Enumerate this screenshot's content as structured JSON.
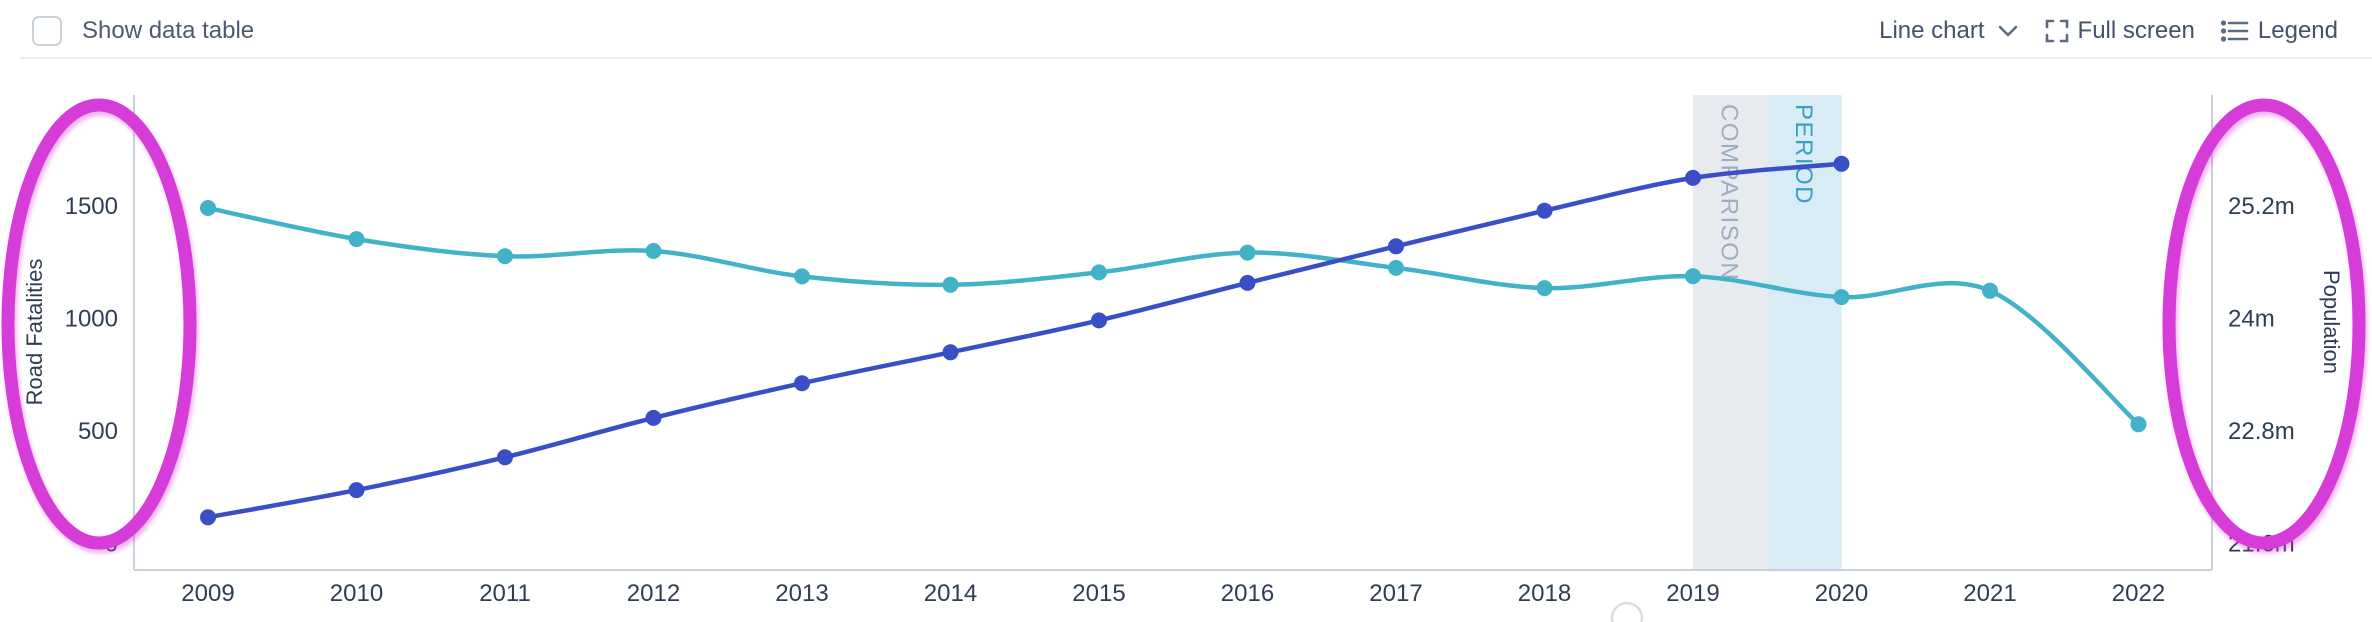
{
  "header": {
    "show_data_table_label": "Show data table",
    "controls": {
      "chart_type_label": "Line chart",
      "full_screen_label": "Full screen",
      "legend_label": "Legend"
    }
  },
  "chart_data": {
    "type": "line",
    "x": [
      2009,
      2010,
      2011,
      2012,
      2013,
      2014,
      2015,
      2016,
      2017,
      2018,
      2019,
      2020,
      2021,
      2022
    ],
    "series": [
      {
        "name": "Road Fatalities",
        "axis": "left",
        "color": "#42b2c8",
        "values": [
          1491,
          1353,
          1277,
          1300,
          1187,
          1150,
          1205,
          1293,
          1225,
          1135,
          1188,
          1095,
          1123,
          530
        ]
      },
      {
        "name": "Population",
        "axis": "right",
        "color": "#3a4fc6",
        "unit": "m",
        "values": [
          21.88,
          22.17,
          22.52,
          22.94,
          23.31,
          23.64,
          23.98,
          24.38,
          24.77,
          25.15,
          25.5,
          25.65
        ]
      }
    ],
    "left_axis": {
      "label": "Road Fatalities",
      "ticks": [
        {
          "value": 1500,
          "label": "1500"
        },
        {
          "value": 1000,
          "label": "1000"
        },
        {
          "value": 500,
          "label": "500"
        },
        {
          "value": 0,
          "label": "0"
        }
      ],
      "ylim": [
        -120,
        2000
      ]
    },
    "right_axis": {
      "label": "Population",
      "ticks": [
        {
          "value": 25.2,
          "label": "25.2m"
        },
        {
          "value": 24.0,
          "label": "24m"
        },
        {
          "value": 22.8,
          "label": "22.8m"
        },
        {
          "value": 21.6,
          "label": "21.6m"
        }
      ],
      "ylim": [
        21.3,
        26.4
      ]
    },
    "bands": [
      {
        "label": "COMPARISON",
        "x_start": 2019.0,
        "x_end": 2019.5,
        "fill": "#e7ebf0",
        "label_color": "#9fadc0"
      },
      {
        "label": "PERIOD",
        "x_start": 2019.5,
        "x_end": 2020.0,
        "fill": "#d8ecf5",
        "label_color": "#3a9fc0"
      }
    ],
    "grid": false,
    "legend_position": "none",
    "colors": {
      "axis_line": "#c7d0dc",
      "tick_text": "#2f3e54",
      "annotation": "#d63cd8"
    }
  },
  "annotations": {
    "ellipses": [
      {
        "target": "left-axis",
        "color": "#d63cd8"
      },
      {
        "target": "right-axis",
        "color": "#d63cd8"
      }
    ]
  }
}
